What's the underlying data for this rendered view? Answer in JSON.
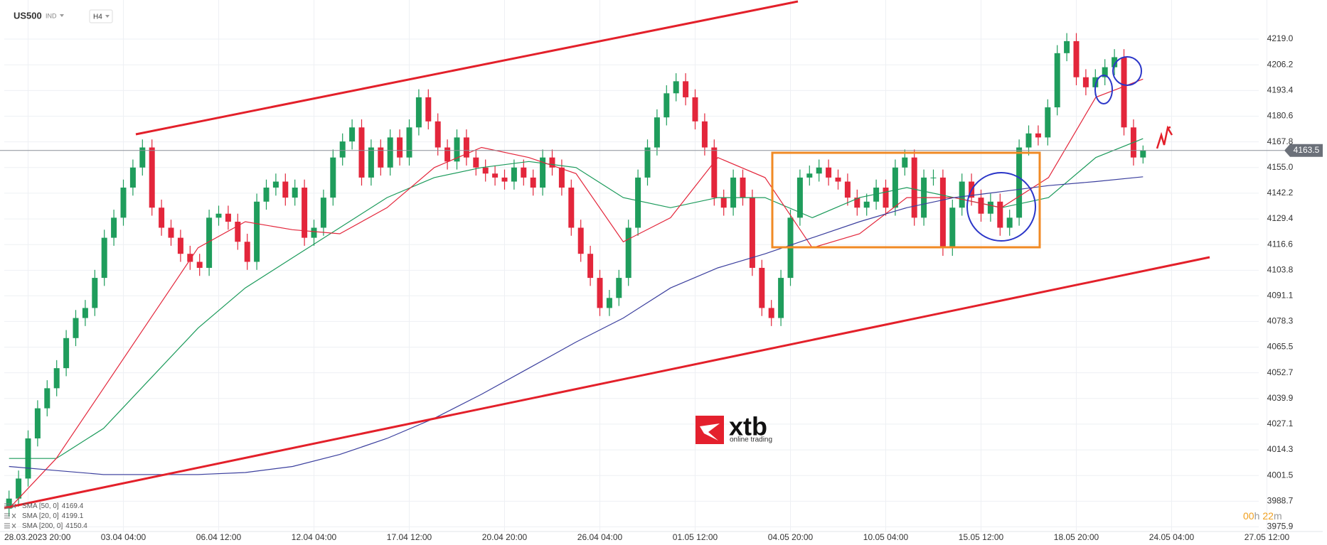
{
  "header": {
    "symbol": "US500",
    "market": "IND",
    "timeframe": "H4"
  },
  "chart_data": {
    "type": "candlestick",
    "up_color": "#1f9d5c",
    "down_color": "#e3263b",
    "ylim": [
      3973.6,
      4238.5
    ],
    "yticks": [
      {
        "value": 4219,
        "label": "4219.0"
      },
      4206.2,
      4193.4,
      4180.6,
      4167.8,
      {
        "value": 4155,
        "label": "4155.0"
      },
      4142.2,
      4129.4,
      4116.6,
      4103.8,
      4091.1,
      4078.3,
      4065.5,
      4052.7,
      4039.9,
      4027.1,
      4014.3,
      4001.5,
      3988.7,
      3975.9
    ],
    "xticks": [
      "28.03.2023  20:00",
      "03.04  04:00",
      "06.04  12:00",
      "12.04  04:00",
      "17.04  12:00",
      "20.04  20:00",
      "26.04  04:00",
      "01.05  12:00",
      "04.05  20:00",
      "10.05  04:00",
      "15.05  12:00",
      "18.05  20:00",
      "24.05  04:00",
      "27.05  12:00"
    ],
    "grid": true,
    "legend": "bottom-left",
    "open": [
      3985,
      3990,
      4000,
      4020,
      4035,
      4045,
      4055,
      4070,
      4080,
      4085,
      4100,
      4120,
      4130,
      4145,
      4155,
      4165,
      4135,
      4125,
      4120,
      4112,
      4108,
      4105,
      4130,
      4132,
      4128,
      4118,
      4108,
      4138,
      4145,
      4148,
      4140,
      4145,
      4120,
      4125,
      4140,
      4160,
      4168,
      4175,
      4150,
      4165,
      4155,
      4170,
      4160,
      4175,
      4190,
      4178,
      4165,
      4158,
      4170,
      4160,
      4155,
      4152,
      4150,
      4148,
      4155,
      4150,
      4145,
      4160,
      4155,
      4145,
      4125,
      4112,
      4100,
      4085,
      4090,
      4100,
      4125,
      4150,
      4165,
      4180,
      4192,
      4198,
      4190,
      4178,
      4165,
      4140,
      4135,
      4150,
      4140,
      4105,
      4085,
      4080,
      4100,
      4130,
      4150,
      4152,
      4155,
      4150,
      4148,
      4140,
      4135,
      4138,
      4145,
      4135,
      4155,
      4160,
      4130,
      4150,
      4150,
      4115,
      4135,
      4148,
      4140,
      4132,
      4138,
      4125,
      4130,
      4165,
      4172,
      4170,
      4185,
      4212,
      4218,
      4200,
      4195,
      4200,
      4205,
      4210,
      4175,
      4160
    ],
    "high": [
      3994,
      4004,
      4024,
      4039,
      4049,
      4059,
      4074,
      4084,
      4089,
      4104,
      4124,
      4134,
      4149,
      4159,
      4169,
      4169,
      4139,
      4129,
      4124,
      4116,
      4112,
      4134,
      4136,
      4136,
      4132,
      4122,
      4142,
      4149,
      4152,
      4152,
      4149,
      4149,
      4129,
      4144,
      4164,
      4172,
      4179,
      4179,
      4169,
      4169,
      4174,
      4174,
      4179,
      4194,
      4194,
      4182,
      4169,
      4174,
      4174,
      4164,
      4159,
      4156,
      4154,
      4159,
      4159,
      4154,
      4164,
      4164,
      4159,
      4149,
      4129,
      4116,
      4104,
      4094,
      4104,
      4129,
      4154,
      4169,
      4184,
      4196,
      4202,
      4202,
      4194,
      4182,
      4169,
      4144,
      4154,
      4154,
      4144,
      4109,
      4089,
      4104,
      4134,
      4154,
      4156,
      4159,
      4159,
      4154,
      4152,
      4144,
      4142,
      4149,
      4149,
      4159,
      4164,
      4164,
      4154,
      4154,
      4154,
      4139,
      4152,
      4152,
      4144,
      4142,
      4142,
      4134,
      4169,
      4176,
      4176,
      4189,
      4216,
      4222,
      4222,
      4204,
      4204,
      4209,
      4214,
      4214,
      4179,
      4166
    ],
    "low": [
      3981,
      3986,
      3996,
      4016,
      4031,
      4041,
      4051,
      4066,
      4076,
      4081,
      4096,
      4116,
      4126,
      4141,
      4151,
      4131,
      4121,
      4116,
      4108,
      4104,
      4101,
      4101,
      4126,
      4124,
      4114,
      4104,
      4104,
      4134,
      4141,
      4136,
      4136,
      4116,
      4116,
      4121,
      4136,
      4156,
      4164,
      4146,
      4146,
      4151,
      4151,
      4156,
      4156,
      4171,
      4174,
      4161,
      4154,
      4154,
      4156,
      4151,
      4148,
      4146,
      4144,
      4144,
      4146,
      4141,
      4141,
      4151,
      4141,
      4121,
      4108,
      4096,
      4081,
      4081,
      4086,
      4096,
      4121,
      4146,
      4161,
      4176,
      4188,
      4186,
      4174,
      4161,
      4136,
      4131,
      4131,
      4136,
      4101,
      4081,
      4076,
      4076,
      4096,
      4126,
      4146,
      4148,
      4146,
      4144,
      4136,
      4131,
      4131,
      4134,
      4131,
      4131,
      4151,
      4126,
      4126,
      4146,
      4111,
      4111,
      4131,
      4136,
      4128,
      4128,
      4121,
      4121,
      4126,
      4161,
      4166,
      4166,
      4181,
      4208,
      4196,
      4191,
      4191,
      4196,
      4201,
      4171,
      4156,
      4157
    ],
    "close": [
      3990,
      4000,
      4020,
      4035,
      4045,
      4055,
      4070,
      4080,
      4085,
      4100,
      4120,
      4130,
      4145,
      4155,
      4165,
      4135,
      4125,
      4120,
      4112,
      4108,
      4105,
      4130,
      4132,
      4128,
      4118,
      4108,
      4138,
      4145,
      4148,
      4140,
      4145,
      4120,
      4125,
      4140,
      4160,
      4168,
      4175,
      4150,
      4165,
      4155,
      4170,
      4160,
      4175,
      4190,
      4178,
      4165,
      4158,
      4170,
      4160,
      4155,
      4152,
      4150,
      4148,
      4155,
      4150,
      4145,
      4160,
      4155,
      4145,
      4125,
      4112,
      4100,
      4085,
      4090,
      4100,
      4125,
      4150,
      4165,
      4180,
      4192,
      4198,
      4190,
      4178,
      4165,
      4140,
      4135,
      4150,
      4140,
      4105,
      4085,
      4080,
      4100,
      4130,
      4150,
      4152,
      4155,
      4150,
      4148,
      4140,
      4135,
      4138,
      4145,
      4135,
      4155,
      4160,
      4130,
      4150,
      4150,
      4115,
      4135,
      4148,
      4140,
      4132,
      4138,
      4125,
      4130,
      4165,
      4172,
      4170,
      4185,
      4212,
      4218,
      4200,
      4195,
      4200,
      4205,
      4210,
      4175,
      4160,
      4163.5
    ],
    "series": [
      {
        "name": "SMA [50, 0]",
        "color": "#1a9a5a",
        "values": [
          4010,
          4010,
          4025,
          4050,
          4075,
          4095,
          4110,
          4125,
          4140,
          4150,
          4155,
          4158,
          4155,
          4140,
          4135,
          4140,
          4140,
          4130,
          4140,
          4145,
          4140,
          4135,
          4140,
          4160,
          4169.4
        ]
      },
      {
        "name": "SMA [20, 0]",
        "color": "#e3263b",
        "values": [
          3985,
          4010,
          4045,
          4080,
          4115,
          4128,
          4124,
          4122,
          4135,
          4155,
          4165,
          4160,
          4152,
          4118,
          4130,
          4160,
          4150,
          4115,
          4122,
          4140,
          4140,
          4135,
          4150,
          4190,
          4199.1
        ]
      },
      {
        "name": "SMA [200, 0]",
        "color": "#3b3f9e",
        "values": [
          4006,
          4004,
          4002,
          4002,
          4002,
          4003,
          4006,
          4012,
          4020,
          4030,
          4042,
          4055,
          4068,
          4080,
          4095,
          4105,
          4112,
          4120,
          4128,
          4135,
          4140,
          4143,
          4146,
          4148,
          4150.4
        ]
      }
    ]
  },
  "countdown": [
    "00",
    "h",
    "22",
    "m"
  ],
  "logo": {
    "brand": "xtb",
    "tagline": "online trading"
  }
}
